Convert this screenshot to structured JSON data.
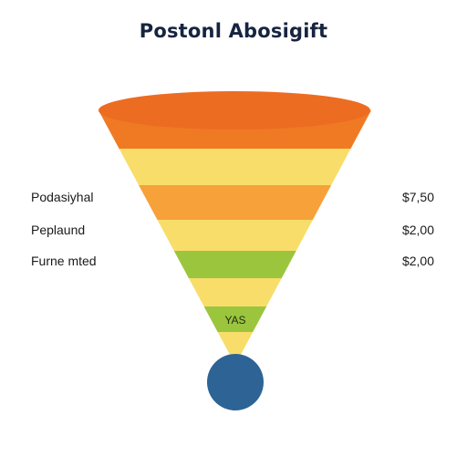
{
  "title": "Postonl Abosigift",
  "stages": [
    {
      "label": "Podasiyhal",
      "value": "$7,50"
    },
    {
      "label": "Peplaund",
      "value": "$2,00"
    },
    {
      "label": "Furne mted",
      "value": "$2,00"
    }
  ],
  "funnel_tag": "YAS",
  "colors": {
    "orange_top": "#f07a24",
    "orange_mid": "#f6a13a",
    "yellow": "#f9dd6a",
    "green": "#9bc53d",
    "circle": "#2d6495",
    "title": "#16243f"
  }
}
